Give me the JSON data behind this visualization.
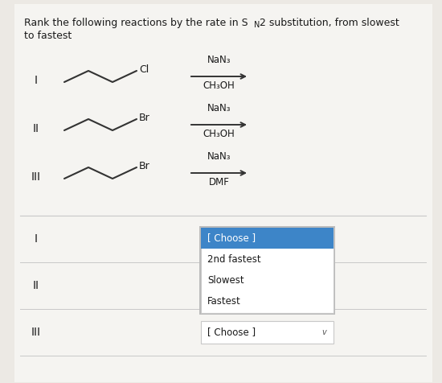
{
  "bg_color": "#ece9e4",
  "card_color": "#f5f4f1",
  "white": "#ffffff",
  "font_color": "#1a1a1a",
  "dropdown_highlight_color": "#3d85c8",
  "dropdown_highlight_text": "#ffffff",
  "border_color": "#c8c8c8",
  "title1": "Rank the following reactions by the rate in S",
  "title_N": "N",
  "title2": "2 substitution, from slowest",
  "title3": "to fastest",
  "reactions": [
    {
      "label": "I",
      "halogen": "Cl",
      "reagent_top": "NaN₃",
      "reagent_bottom": "CH₃OH"
    },
    {
      "label": "II",
      "halogen": "Br",
      "reagent_top": "NaN₃",
      "reagent_bottom": "CH₃OH"
    },
    {
      "label": "III",
      "halogen": "Br",
      "reagent_top": "NaN₃",
      "reagent_bottom": "DMF"
    }
  ],
  "ranking_labels": [
    "I",
    "II",
    "III"
  ],
  "dropdown_options": [
    "[ Choose ]",
    "2nd fastest",
    "Slowest",
    "Fastest"
  ],
  "dropdown_highlighted": "[ Choose ]",
  "title_fontsize": 9,
  "label_fontsize": 10,
  "reagent_fontsize": 8.5,
  "halogen_fontsize": 9
}
